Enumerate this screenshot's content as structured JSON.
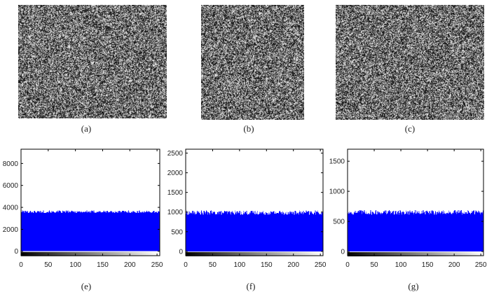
{
  "captions": {
    "a": "(a)",
    "b": "(b)",
    "c": "(c)",
    "e": "(e)",
    "f": "(f)",
    "g": "(g)"
  },
  "colors": {
    "bar": "#0000ff",
    "axis": "#000000"
  },
  "images": [
    {
      "id": "a",
      "kind": "noise-image"
    },
    {
      "id": "b",
      "kind": "noise-image"
    },
    {
      "id": "c",
      "kind": "noise-image"
    }
  ],
  "chart_data": [
    {
      "type": "bar",
      "id": "e",
      "x_ticks": [
        0,
        50,
        100,
        150,
        200,
        250
      ],
      "y_ticks": [
        0,
        2000,
        4000,
        6000,
        8000
      ],
      "xlim": [
        0,
        255
      ],
      "ylim": [
        -400,
        9300
      ],
      "level": 3600,
      "level_jitter": 120,
      "colorbar": "grayscale 0-255"
    },
    {
      "type": "bar",
      "id": "f",
      "x_ticks": [
        0,
        50,
        100,
        150,
        200,
        250
      ],
      "y_ticks": [
        0,
        500,
        1000,
        1500,
        2000,
        2500
      ],
      "xlim": [
        0,
        255
      ],
      "ylim": [
        -110,
        2600
      ],
      "level": 985,
      "level_jitter": 55,
      "colorbar": "grayscale 0-255"
    },
    {
      "type": "bar",
      "id": "g",
      "x_ticks": [
        0,
        50,
        100,
        150,
        200,
        250
      ],
      "y_ticks": [
        0,
        500,
        1000,
        1500
      ],
      "xlim": [
        0,
        255
      ],
      "ylim": [
        -70,
        1700
      ],
      "level": 650,
      "level_jitter": 40,
      "colorbar": "grayscale 0-255"
    }
  ]
}
